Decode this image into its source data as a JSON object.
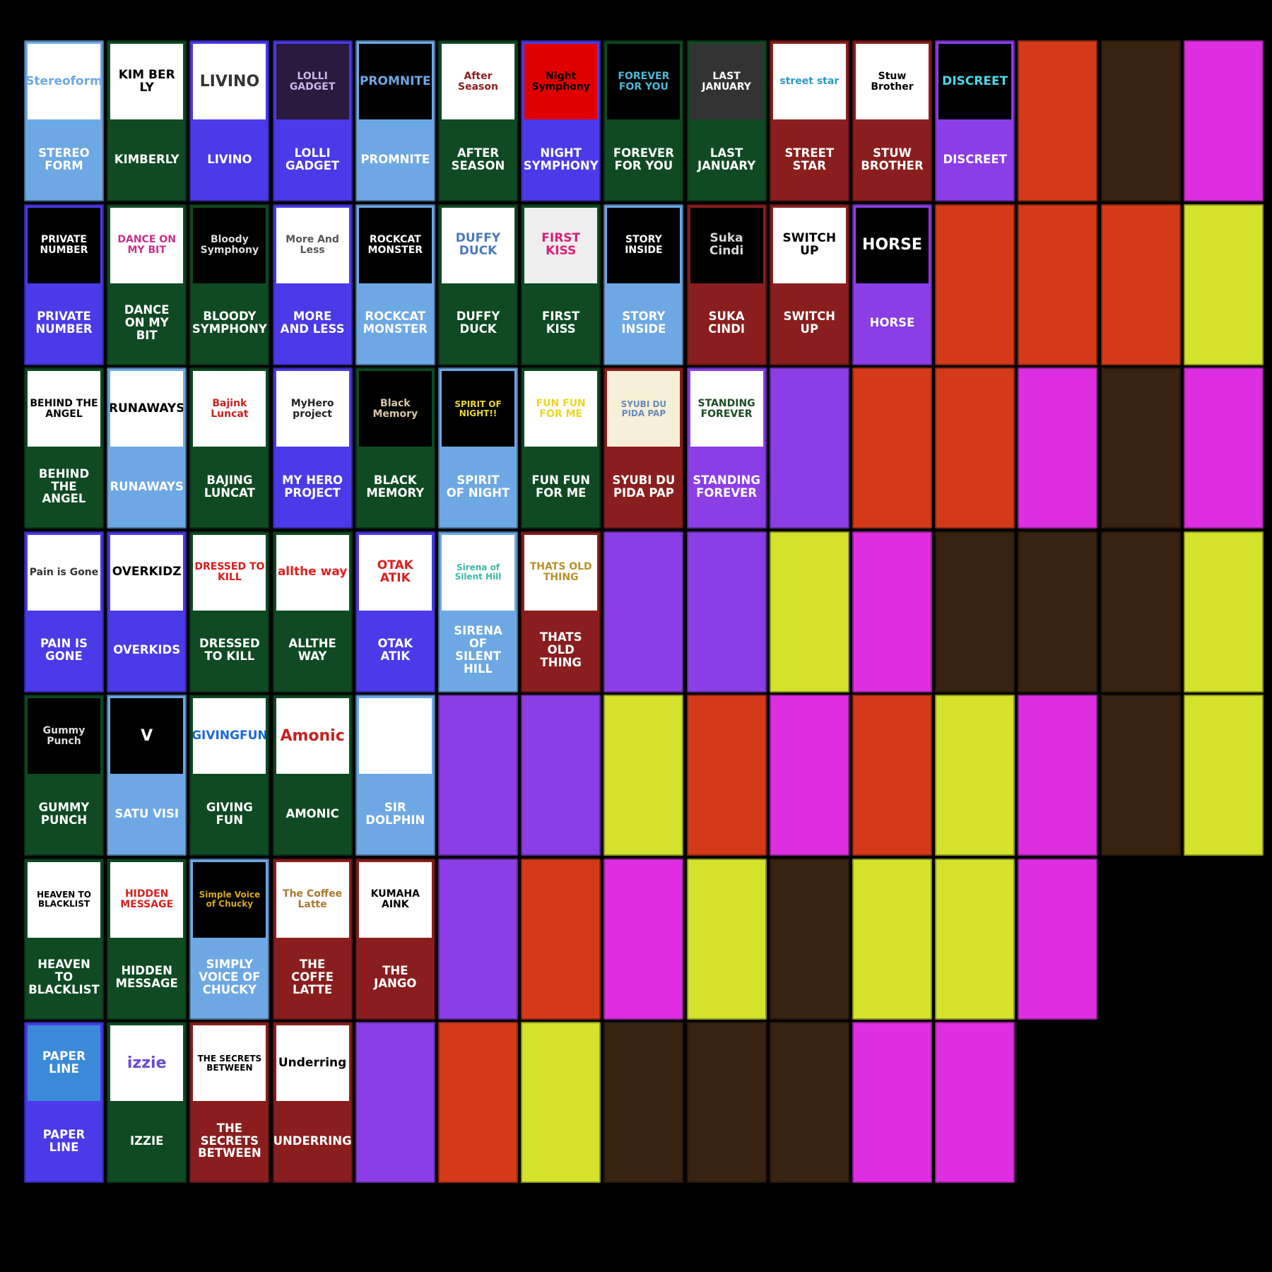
{
  "colors": {
    "background": "#000000",
    "blue": "#4b3ae8",
    "lightblue": "#6ea8e4",
    "green": "#0f4a22",
    "red": "#8a1e1e",
    "purple": "#8b3ee6",
    "orange": "#d43a1a",
    "brown": "#382210",
    "magenta": "#de2ee2",
    "lime": "#d4e22c"
  },
  "rows": [
    [
      {
        "name": "STEREO FORM",
        "color": "lightblue",
        "logo_text": "Stereoform",
        "logo_bg": "#ffffff",
        "logo_fg": "#6ea8e4",
        "logo_icon": "stereoform-shield-logo"
      },
      {
        "name": "KIMBERLY",
        "color": "green",
        "logo_text": "KIM BER LY",
        "logo_bg": "#ffffff",
        "logo_fg": "#000000",
        "logo_icon": "kimberly-logo"
      },
      {
        "name": "LIVINO",
        "color": "blue",
        "logo_text": "LIVINO",
        "logo_bg": "#ffffff",
        "logo_fg": "#333333",
        "logo_icon": "livino-logo"
      },
      {
        "name": "LOLLI GADGET",
        "color": "blue",
        "logo_text": "LOLLI GADGET",
        "logo_bg": "#2a1a3e",
        "logo_fg": "#c8b8e8",
        "logo_icon": "lolli-gadget-logo"
      },
      {
        "name": "PROMNITE",
        "color": "lightblue",
        "logo_text": "PROMNITE",
        "logo_bg": "#000000",
        "logo_fg": "#6ea8e4",
        "logo_icon": "promnite-logo"
      },
      {
        "name": "AFTER SEASON",
        "color": "green",
        "logo_text": "After Season",
        "logo_bg": "#ffffff",
        "logo_fg": "#8a1e1e",
        "logo_icon": "after-season-logo"
      },
      {
        "name": "NIGHT SYMPHONY",
        "color": "blue",
        "logo_text": "Night Symphony",
        "logo_bg": "#e00000",
        "logo_fg": "#000000",
        "logo_icon": "night-symphony-logo"
      },
      {
        "name": "FOREVER FOR YOU",
        "color": "green",
        "logo_text": "FOREVER FOR YOU",
        "logo_bg": "#000000",
        "logo_fg": "#4ab8d8",
        "logo_icon": "forever-for-you-logo"
      },
      {
        "name": "LAST JANUARY",
        "color": "green",
        "logo_text": "LAST JANUARY",
        "logo_bg": "#333333",
        "logo_fg": "#ffffff",
        "logo_icon": "last-january-logo"
      },
      {
        "name": "STREET STAR",
        "color": "red",
        "logo_text": "street star",
        "logo_bg": "#ffffff",
        "logo_fg": "#2a9ac8",
        "logo_icon": "street-star-logo"
      },
      {
        "name": "STUW BROTHER",
        "color": "red",
        "logo_text": "Stuw Brother",
        "logo_bg": "#ffffff",
        "logo_fg": "#000000",
        "logo_icon": "stuw-brother-logo"
      },
      {
        "name": "DISCREET",
        "color": "purple",
        "logo_text": "DISCREET",
        "logo_bg": "#000000",
        "logo_fg": "#4ad8e8",
        "logo_icon": "discreet-logo"
      },
      {
        "filler": "orange"
      },
      {
        "filler": "brown"
      },
      {
        "filler": "magenta"
      }
    ],
    [
      {
        "name": "PRIVATE NUMBER",
        "color": "blue",
        "logo_text": "PRIVATE NUMBER",
        "logo_bg": "#000000",
        "logo_fg": "#ffffff",
        "logo_icon": "private-number-logo"
      },
      {
        "name": "DANCE ON MY BIT",
        "color": "green",
        "logo_text": "DANCE ON MY BIT",
        "logo_bg": "#ffffff",
        "logo_fg": "#c8308a",
        "logo_icon": "dance-on-my-bit-logo"
      },
      {
        "name": "BLOODY SYMPHONY",
        "color": "green",
        "logo_text": "Bloody Symphony",
        "logo_bg": "#000000",
        "logo_fg": "#dddddd",
        "logo_icon": "bloody-symphony-logo"
      },
      {
        "name": "MORE AND LESS",
        "color": "blue",
        "logo_text": "More And Less",
        "logo_bg": "#ffffff",
        "logo_fg": "#555555",
        "logo_icon": "more-and-less-logo"
      },
      {
        "name": "ROCKCAT MONSTER",
        "color": "lightblue",
        "logo_text": "ROCKCAT MONSTER",
        "logo_bg": "#000000",
        "logo_fg": "#ffffff",
        "logo_icon": "rockcat-monster-logo"
      },
      {
        "name": "DUFFY DUCK",
        "color": "green",
        "logo_text": "DUFFY DUCK",
        "logo_bg": "#ffffff",
        "logo_fg": "#4a7ab8",
        "logo_icon": "duffy-duck-logo"
      },
      {
        "name": "FIRST KISS",
        "color": "green",
        "logo_text": "FIRST KISS",
        "logo_bg": "#eeeeee",
        "logo_fg": "#d8207a",
        "logo_icon": "first-kiss-logo"
      },
      {
        "name": "STORY INSIDE",
        "color": "lightblue",
        "logo_text": "STORY INSIDE",
        "logo_bg": "#000000",
        "logo_fg": "#ffffff",
        "logo_icon": "story-inside-logo"
      },
      {
        "name": "SUKA CINDI",
        "color": "red",
        "logo_text": "Suka Cindi",
        "logo_bg": "#000000",
        "logo_fg": "#d8d8d8",
        "logo_icon": "suka-cindi-logo"
      },
      {
        "name": "SWITCH UP",
        "color": "red",
        "logo_text": "SWITCH UP",
        "logo_bg": "#ffffff",
        "logo_fg": "#000000",
        "logo_icon": "switch-up-logo"
      },
      {
        "name": "HORSE",
        "color": "purple",
        "logo_text": "HORSE",
        "logo_bg": "#000000",
        "logo_fg": "#ffffff",
        "logo_icon": "horse-logo"
      },
      {
        "filler": "orange"
      },
      {
        "filler": "orange"
      },
      {
        "filler": "orange"
      },
      {
        "filler": "lime"
      }
    ],
    [
      {
        "name": "BEHIND THE ANGEL",
        "color": "green",
        "logo_text": "BEHIND THE ANGEL",
        "logo_bg": "#ffffff",
        "logo_fg": "#000000",
        "logo_icon": "behind-the-angel-logo"
      },
      {
        "name": "RUNAWAYS",
        "color": "lightblue",
        "logo_text": "RUNAWAYS",
        "logo_bg": "#ffffff",
        "logo_fg": "#000000",
        "logo_icon": "runaways-logo"
      },
      {
        "name": "BAJING LUNCAT",
        "color": "green",
        "logo_text": "Bajink Luncat",
        "logo_bg": "#ffffff",
        "logo_fg": "#c82020",
        "logo_icon": "bajing-luncat-logo"
      },
      {
        "name": "MY HERO PROJECT",
        "color": "blue",
        "logo_text": "MyHero project",
        "logo_bg": "#ffffff",
        "logo_fg": "#222222",
        "logo_icon": "my-hero-project-logo"
      },
      {
        "name": "BLACK MEMORY",
        "color": "green",
        "logo_text": "Black Memory",
        "logo_bg": "#000000",
        "logo_fg": "#d8c8a8",
        "logo_icon": "black-memory-logo"
      },
      {
        "name": "SPIRIT OF NIGHT",
        "color": "lightblue",
        "logo_text": "SPIRIT OF NIGHT!!",
        "logo_bg": "#000000",
        "logo_fg": "#e8d830",
        "logo_icon": "spirit-of-night-logo"
      },
      {
        "name": "FUN FUN FOR ME",
        "color": "green",
        "logo_text": "FUN FUN FOR ME",
        "logo_bg": "#ffffff",
        "logo_fg": "#e8d820",
        "logo_icon": "fun-fun-for-me-logo"
      },
      {
        "name": "SYUBI DU PIDA PAP",
        "color": "red",
        "logo_text": "SYUBI DU PIDA PAP",
        "logo_bg": "#f6f0d8",
        "logo_fg": "#6a8ab8",
        "logo_icon": "syubi-du-pida-pap-logo"
      },
      {
        "name": "STANDING FOREVER",
        "color": "purple",
        "logo_text": "STANDING FOREVER",
        "logo_bg": "#ffffff",
        "logo_fg": "#1a4a22",
        "logo_icon": "standing-forever-logo"
      },
      {
        "filler": "purple"
      },
      {
        "filler": "orange"
      },
      {
        "filler": "orange"
      },
      {
        "filler": "magenta"
      },
      {
        "filler": "brown"
      },
      {
        "filler": "magenta"
      }
    ],
    [
      {
        "name": "PAIN IS GONE",
        "color": "blue",
        "logo_text": "Pain is Gone",
        "logo_bg": "#ffffff",
        "logo_fg": "#333333",
        "logo_icon": "pain-is-gone-logo"
      },
      {
        "name": "OVERKIDS",
        "color": "blue",
        "logo_text": "OVERKIDZ",
        "logo_bg": "#ffffff",
        "logo_fg": "#000000",
        "logo_icon": "overkidz-logo"
      },
      {
        "name": "DRESSED TO KILL",
        "color": "green",
        "logo_text": "DRESSED TO KILL",
        "logo_bg": "#ffffff",
        "logo_fg": "#d81818",
        "logo_icon": "dressed-to-kill-logo"
      },
      {
        "name": "ALLTHE WAY",
        "color": "green",
        "logo_text": "allthe way",
        "logo_bg": "#ffffff",
        "logo_fg": "#e02020",
        "logo_icon": "all-the-way-stop-sign-logo"
      },
      {
        "name": "OTAK ATIK",
        "color": "blue",
        "logo_text": "OTAK ATIK",
        "logo_bg": "#ffffff",
        "logo_fg": "#d82020",
        "logo_icon": "otak-atik-logo"
      },
      {
        "name": "SIRENA OF SILENT HILL",
        "color": "lightblue",
        "logo_text": "Sirena of Silent Hill",
        "logo_bg": "#ffffff",
        "logo_fg": "#3ab8a8",
        "logo_icon": "sirena-of-silent-hill-logo"
      },
      {
        "name": "THATS OLD THING",
        "color": "red",
        "logo_text": "THATS OLD THING",
        "logo_bg": "#ffffff",
        "logo_fg": "#b8902a",
        "logo_icon": "thats-old-thing-logo"
      },
      {
        "filler": "purple"
      },
      {
        "filler": "purple"
      },
      {
        "filler": "lime"
      },
      {
        "filler": "magenta"
      },
      {
        "filler": "brown"
      },
      {
        "filler": "brown"
      },
      {
        "filler": "brown"
      },
      {
        "filler": "lime"
      }
    ],
    [
      {
        "name": "GUMMY PUNCH",
        "color": "green",
        "logo_text": "Gummy Punch",
        "logo_bg": "#000000",
        "logo_fg": "#dddddd",
        "logo_icon": "gummy-punch-logo"
      },
      {
        "name": "SATU VISI",
        "color": "lightblue",
        "logo_text": "V",
        "logo_bg": "#000000",
        "logo_fg": "#ffffff",
        "logo_icon": "satu-visi-logo"
      },
      {
        "name": "GIVING FUN",
        "color": "green",
        "logo_text": "GIVINGFUN",
        "logo_bg": "#ffffff",
        "logo_fg": "#1a6ad8",
        "logo_icon": "giving-fun-logo"
      },
      {
        "name": "AMONIC",
        "color": "green",
        "logo_text": "Amonic",
        "logo_bg": "#ffffff",
        "logo_fg": "#c82020",
        "logo_icon": "amonic-logo"
      },
      {
        "name": "SIR DOLPHIN",
        "color": "lightblue",
        "logo_text": "",
        "logo_bg": "#ffffff",
        "logo_fg": "#000000",
        "logo_icon": "sir-dolphin-logo"
      },
      {
        "filler": "purple"
      },
      {
        "filler": "purple"
      },
      {
        "filler": "lime"
      },
      {
        "filler": "orange"
      },
      {
        "filler": "magenta"
      },
      {
        "filler": "orange"
      },
      {
        "filler": "lime"
      },
      {
        "filler": "magenta"
      },
      {
        "filler": "brown"
      },
      {
        "filler": "lime"
      }
    ],
    [
      {
        "name": "HEAVEN TO BLACKLIST",
        "color": "green",
        "logo_text": "HEAVEN TO BLACKLIST",
        "logo_bg": "#ffffff",
        "logo_fg": "#000000",
        "logo_icon": "heaven-to-blacklist-logo"
      },
      {
        "name": "HIDDEN MESSAGE",
        "color": "green",
        "logo_text": "HIDDEN MESSAGE",
        "logo_bg": "#ffffff",
        "logo_fg": "#d82020",
        "logo_icon": "hidden-message-logo"
      },
      {
        "name": "SIMPLY VOICE OF CHUCKY",
        "color": "lightblue",
        "logo_text": "Simple Voice of Chucky",
        "logo_bg": "#000000",
        "logo_fg": "#d8a820",
        "logo_icon": "simply-voice-of-chucky-logo"
      },
      {
        "name": "THE COFFE LATTE",
        "color": "red",
        "logo_text": "The Coffee Latte",
        "logo_bg": "#ffffff",
        "logo_fg": "#a87830",
        "logo_icon": "coffee-latte-logo"
      },
      {
        "name": "THE JANGO",
        "color": "red",
        "logo_text": "KUMAHA AINK",
        "logo_bg": "#ffffff",
        "logo_fg": "#000000",
        "logo_icon": "the-jango-logo"
      },
      {
        "filler": "purple"
      },
      {
        "filler": "orange"
      },
      {
        "filler": "magenta"
      },
      {
        "filler": "lime"
      },
      {
        "filler": "brown"
      },
      {
        "filler": "lime"
      },
      {
        "filler": "lime"
      },
      {
        "filler": "magenta"
      }
    ],
    [
      {
        "name": "PAPER LINE",
        "color": "blue",
        "logo_text": "PAPER LINE",
        "logo_bg": "#3a8ad8",
        "logo_fg": "#ffffff",
        "logo_icon": "paper-line-logo"
      },
      {
        "name": "IZZIE",
        "color": "green",
        "logo_text": "izzie",
        "logo_bg": "#ffffff",
        "logo_fg": "#6a4ad8",
        "logo_icon": "izzie-logo"
      },
      {
        "name": "THE SECRETS BETWEEN",
        "color": "red",
        "logo_text": "THE SECRETS BETWEEN",
        "logo_bg": "#ffffff",
        "logo_fg": "#000000",
        "logo_icon": "the-secrets-between-logo"
      },
      {
        "name": "UNDERRING",
        "color": "red",
        "logo_text": "Underring",
        "logo_bg": "#ffffff",
        "logo_fg": "#000000",
        "logo_icon": "underring-logo"
      },
      {
        "filler": "purple"
      },
      {
        "filler": "orange"
      },
      {
        "filler": "lime"
      },
      {
        "filler": "brown"
      },
      {
        "filler": "brown"
      },
      {
        "filler": "brown"
      },
      {
        "filler": "magenta"
      },
      {
        "filler": "magenta"
      }
    ]
  ]
}
